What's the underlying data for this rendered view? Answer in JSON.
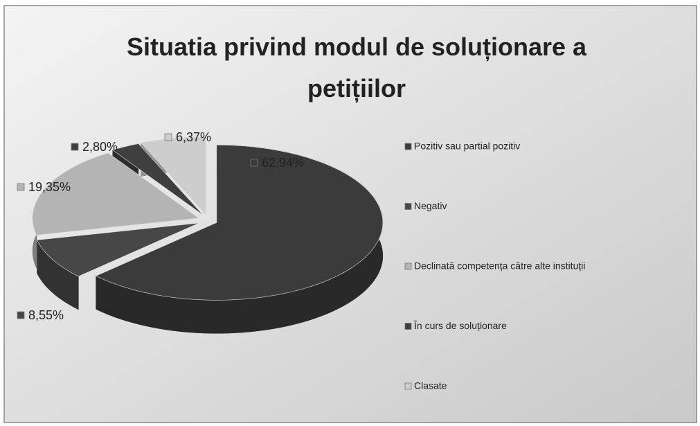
{
  "chart_data": {
    "type": "pie",
    "title": "Situatia privind modul de soluționare a petițiilor",
    "categories": [
      "Pozitiv sau partial pozitiv",
      "Negativ",
      "Declinată competența către alte instituții",
      "În curs de soluționare",
      "Clasate"
    ],
    "values": [
      62.94,
      8.55,
      19.35,
      2.8,
      6.37
    ],
    "value_labels": [
      "62,94%",
      "8,55%",
      "19,35%",
      "2,80%",
      "6,37%"
    ],
    "colors": [
      "#3b3b3b",
      "#474747",
      "#b4b4b4",
      "#3f3f3f",
      "#cdcdcd"
    ],
    "legend": "right"
  }
}
